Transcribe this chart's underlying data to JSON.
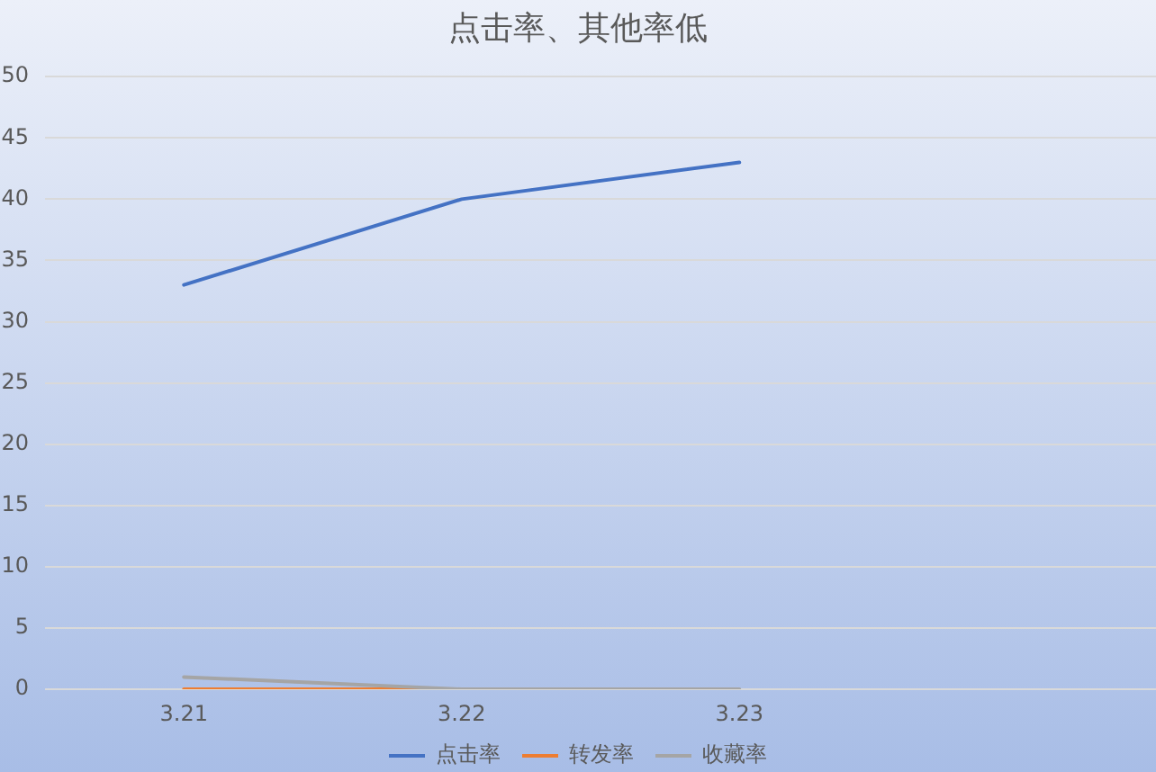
{
  "chart_data": {
    "type": "line",
    "title": "点击率、其他率低",
    "categories": [
      "3.21",
      "3.22",
      "3.23",
      null
    ],
    "series": [
      {
        "name": "点击率",
        "color": "#4472c4",
        "values": [
          33,
          40,
          43,
          null
        ]
      },
      {
        "name": "转发率",
        "color": "#ed7d31",
        "values": [
          0,
          0,
          null,
          null
        ]
      },
      {
        "name": "收藏率",
        "color": "#a5a5a5",
        "values": [
          1,
          0,
          0,
          null
        ]
      }
    ],
    "ylim": [
      0,
      50
    ],
    "yticks": [
      0,
      5,
      10,
      15,
      20,
      25,
      30,
      35,
      40,
      45,
      50
    ],
    "grid": "y",
    "legend": "bottom",
    "marker": "none",
    "line_style": "solid"
  }
}
